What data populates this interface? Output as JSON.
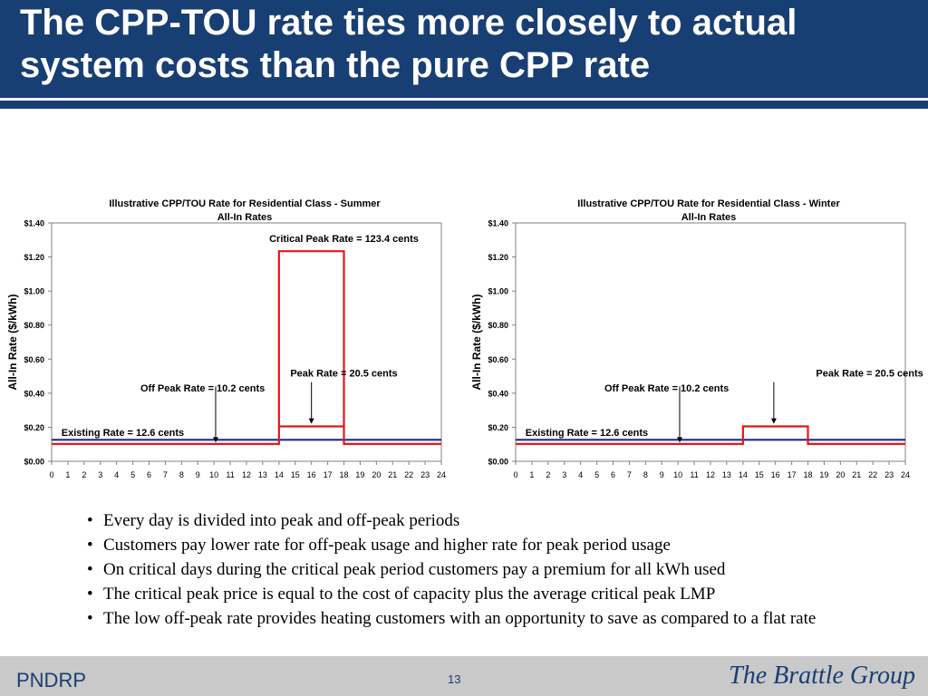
{
  "slide": {
    "title": "The CPP-TOU rate ties more closely to actual system costs than the pure CPP rate",
    "bullets": [
      "Every day is divided into peak and off-peak periods",
      "Customers pay lower rate for off-peak usage and higher rate for peak period usage",
      "On critical days during the critical peak period customers pay a premium for all kWh used",
      "The critical peak price is equal to the cost of capacity plus the average critical peak LMP",
      "The low off-peak rate provides heating customers with an opportunity to save as compared to a flat rate"
    ],
    "footer": {
      "left": "PNDRP",
      "page": "13",
      "logo": "The Brattle Group"
    }
  },
  "colors": {
    "brand_blue": "#183f73",
    "cpp_tou_line": "#e8141b",
    "existing_rate_line": "#1f2a8a",
    "footer_bg": "#c9c9c9"
  },
  "chart_data": [
    {
      "type": "line",
      "title": "Illustrative CPP/TOU Rate for Residential Class - Summer",
      "subtitle": "All-In Rates",
      "xlabel": "",
      "ylabel": "All-In Rate ($/kWh)",
      "ylim": [
        0,
        1.4
      ],
      "yticks": [
        0,
        0.2,
        0.4,
        0.6,
        0.8,
        1.0,
        1.2,
        1.4
      ],
      "ytick_labels": [
        "$0.00",
        "$0.20",
        "$0.40",
        "$0.60",
        "$0.80",
        "$1.00",
        "$1.20",
        "$1.40"
      ],
      "xlim": [
        0,
        24
      ],
      "xticks": [
        0,
        1,
        2,
        3,
        4,
        5,
        6,
        7,
        8,
        9,
        10,
        11,
        12,
        13,
        14,
        15,
        16,
        17,
        18,
        19,
        20,
        21,
        22,
        23,
        24
      ],
      "grid": false,
      "series": [
        {
          "role": "cpp-tou",
          "color": "#e8141b",
          "x": [
            0,
            14,
            14,
            18,
            18,
            24
          ],
          "y": [
            0.102,
            0.102,
            1.234,
            1.234,
            0.102,
            0.102
          ]
        },
        {
          "role": "cpp-tou-peak",
          "color": "#e8141b",
          "x": [
            14,
            18
          ],
          "y": [
            0.205,
            0.205
          ]
        },
        {
          "role": "existing",
          "color": "#1f2a8a",
          "x": [
            0,
            24
          ],
          "y": [
            0.126,
            0.126
          ]
        }
      ],
      "annotations": [
        {
          "text": "Critical Peak Rate = 123.4 cents",
          "x": 18,
          "y": 1.31,
          "align": "middle",
          "arrow": false
        },
        {
          "text": "Peak Rate = 20.5 cents",
          "x": 18,
          "y": 0.52,
          "align": "middle",
          "arrow": true,
          "arrow_x": 16.0,
          "arrow_from": 0.465,
          "arrow_to": 0.22
        },
        {
          "text": "Off Peak Rate = 10.2 cents",
          "x": 9.3,
          "y": 0.43,
          "align": "middle",
          "arrow": true,
          "arrow_x": 10.1,
          "arrow_from": 0.44,
          "arrow_to": 0.11
        },
        {
          "text": "Existing Rate = 12.6 cents",
          "x": 0.6,
          "y": 0.17,
          "align": "start",
          "arrow": false
        }
      ]
    },
    {
      "type": "line",
      "title": "Illustrative CPP/TOU Rate for Residential Class - Winter",
      "subtitle": "All-In Rates",
      "xlabel": "",
      "ylabel": "All-In Rate ($/kWh)",
      "ylim": [
        0,
        1.4
      ],
      "yticks": [
        0,
        0.2,
        0.4,
        0.6,
        0.8,
        1.0,
        1.2,
        1.4
      ],
      "ytick_labels": [
        "$0.00",
        "$0.20",
        "$0.40",
        "$0.60",
        "$0.80",
        "$1.00",
        "$1.20",
        "$1.40"
      ],
      "xlim": [
        0,
        24
      ],
      "xticks": [
        0,
        1,
        2,
        3,
        4,
        5,
        6,
        7,
        8,
        9,
        10,
        11,
        12,
        13,
        14,
        15,
        16,
        17,
        18,
        19,
        20,
        21,
        22,
        23,
        24
      ],
      "grid": false,
      "series": [
        {
          "role": "cpp-tou",
          "color": "#e8141b",
          "x": [
            0,
            14,
            14,
            18,
            18,
            24
          ],
          "y": [
            0.102,
            0.102,
            0.205,
            0.205,
            0.102,
            0.102
          ]
        },
        {
          "role": "existing",
          "color": "#1f2a8a",
          "x": [
            0,
            24
          ],
          "y": [
            0.126,
            0.126
          ]
        }
      ],
      "annotations": [
        {
          "text": "Peak Rate = 20.5 cents",
          "x": 21.8,
          "y": 0.52,
          "align": "middle",
          "arrow": true,
          "arrow_x": 15.9,
          "arrow_from": 0.465,
          "arrow_to": 0.22
        },
        {
          "text": "Off Peak Rate = 10.2 cents",
          "x": 9.3,
          "y": 0.43,
          "align": "middle",
          "arrow": true,
          "arrow_x": 10.1,
          "arrow_from": 0.44,
          "arrow_to": 0.11
        },
        {
          "text": "Existing Rate = 12.6 cents",
          "x": 0.6,
          "y": 0.17,
          "align": "start",
          "arrow": false
        }
      ]
    }
  ]
}
